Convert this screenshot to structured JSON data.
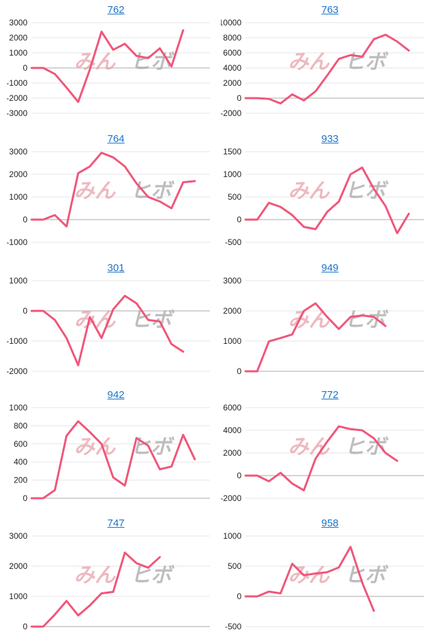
{
  "watermark": {
    "part1": "みん",
    "part2": "ヒボ"
  },
  "line_color": "#f0567a",
  "chart_data": [
    {
      "type": "line",
      "title": "762",
      "yticks": [
        3000,
        2000,
        1000,
        0,
        -1000,
        -2000,
        -3000
      ],
      "values": [
        0,
        0,
        -400,
        -1300,
        -2250,
        -100,
        2400,
        1200,
        1600,
        800,
        650,
        1300,
        100,
        2500
      ]
    },
    {
      "type": "line",
      "title": "763",
      "yticks": [
        10000,
        8000,
        6000,
        4000,
        2000,
        0,
        -2000
      ],
      "values": [
        0,
        0,
        -100,
        -700,
        500,
        -300,
        900,
        3000,
        5200,
        5700,
        5500,
        7800,
        8400,
        7500,
        6300
      ]
    },
    {
      "type": "line",
      "title": "764",
      "yticks": [
        3000,
        2000,
        1000,
        0,
        -1000
      ],
      "values": [
        0,
        0,
        200,
        -300,
        2050,
        2350,
        2950,
        2750,
        2350,
        1600,
        1000,
        800,
        500,
        1650,
        1700
      ]
    },
    {
      "type": "line",
      "title": "933",
      "yticks": [
        1500,
        1000,
        500,
        0,
        -500
      ],
      "values": [
        0,
        0,
        370,
        280,
        100,
        -160,
        -210,
        170,
        400,
        1000,
        1150,
        680,
        300,
        -300,
        130
      ]
    },
    {
      "type": "line",
      "title": "301",
      "yticks": [
        1000,
        0,
        -1000,
        -2000
      ],
      "values": [
        0,
        0,
        -300,
        -900,
        -1800,
        -200,
        -900,
        50,
        500,
        250,
        -300,
        -350,
        -1100,
        -1350
      ]
    },
    {
      "type": "line",
      "title": "949",
      "yticks": [
        3000,
        2000,
        1000,
        0
      ],
      "values": [
        0,
        0,
        990,
        1100,
        1220,
        2000,
        2250,
        1800,
        1400,
        1800,
        1850,
        1800,
        1500
      ]
    },
    {
      "type": "line",
      "title": "942",
      "yticks": [
        1000,
        800,
        600,
        400,
        200,
        0
      ],
      "values": [
        0,
        0,
        90,
        690,
        850,
        730,
        600,
        230,
        140,
        665,
        580,
        320,
        350,
        700,
        430
      ]
    },
    {
      "type": "line",
      "title": "772",
      "yticks": [
        6000,
        4000,
        2000,
        0,
        -2000
      ],
      "values": [
        0,
        0,
        -500,
        250,
        -700,
        -1300,
        1500,
        3000,
        4350,
        4100,
        4000,
        3300,
        2000,
        1300
      ]
    },
    {
      "type": "line",
      "title": "747",
      "yticks": [
        3000,
        2000,
        1000,
        0
      ],
      "values": [
        0,
        0,
        400,
        850,
        370,
        700,
        1100,
        1150,
        2450,
        2100,
        1950,
        2300
      ]
    },
    {
      "type": "line",
      "title": "958",
      "yticks": [
        1000,
        500,
        0,
        -500
      ],
      "values": [
        0,
        0,
        80,
        50,
        540,
        350,
        380,
        400,
        480,
        820,
        230,
        -240
      ]
    }
  ]
}
